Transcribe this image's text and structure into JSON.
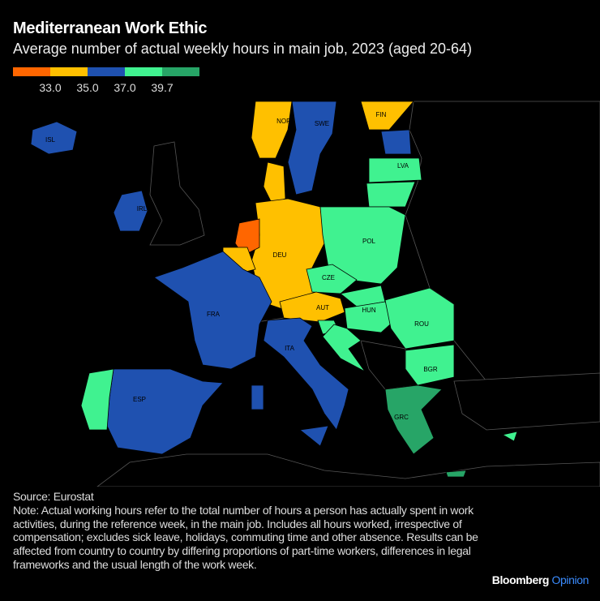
{
  "title": "Mediterranean Work Ethic",
  "subtitle": "Average number of actual weekly hours in main job, 2023 (aged 20-64)",
  "legend": {
    "colors": [
      "#ff6600",
      "#ffc000",
      "#1f51b0",
      "#40f290",
      "#27a567"
    ],
    "breaks": [
      "33.0",
      "35.0",
      "37.0",
      "39.7"
    ]
  },
  "countries": [
    {
      "code": "NOR",
      "bin": 1
    },
    {
      "code": "SWE",
      "bin": 2
    },
    {
      "code": "FIN",
      "bin": 1
    },
    {
      "code": "ISL",
      "bin": 2
    },
    {
      "code": "IRL",
      "bin": 2
    },
    {
      "code": "EST",
      "bin": 2
    },
    {
      "code": "LVA",
      "bin": 3
    },
    {
      "code": "LTU",
      "bin": 3
    },
    {
      "code": "DNK",
      "bin": 1
    },
    {
      "code": "DEU",
      "bin": 1
    },
    {
      "code": "NLD",
      "bin": 0
    },
    {
      "code": "BEL",
      "bin": 1
    },
    {
      "code": "POL",
      "bin": 3
    },
    {
      "code": "CZE",
      "bin": 3
    },
    {
      "code": "SVK",
      "bin": 3
    },
    {
      "code": "AUT",
      "bin": 1
    },
    {
      "code": "HUN",
      "bin": 3
    },
    {
      "code": "ROU",
      "bin": 3
    },
    {
      "code": "BGR",
      "bin": 3
    },
    {
      "code": "GRC",
      "bin": 4
    },
    {
      "code": "SVN",
      "bin": 3
    },
    {
      "code": "HRV",
      "bin": 3
    },
    {
      "code": "FRA",
      "bin": 2
    },
    {
      "code": "ESP",
      "bin": 2
    },
    {
      "code": "PRT",
      "bin": 3
    },
    {
      "code": "ITA",
      "bin": 2
    },
    {
      "code": "CYP",
      "bin": 3
    }
  ],
  "labels": [
    "NOR",
    "SWE",
    "FIN",
    "ISL",
    "IRL",
    "LVA",
    "POL",
    "DEU",
    "CZE",
    "AUT",
    "HUN",
    "ROU",
    "FRA",
    "ITA",
    "ESP",
    "BGR",
    "GRC"
  ],
  "source": "Source: Eurostat",
  "note": "Note: Actual working hours refer to the total number of hours a person has actually spent in work activities, during the reference week, in the main job. Includes all hours worked, irrespective of compensation; excludes sick leave, holidays, commuting time and other absence. Results can be affected from country to country by differing proportions of part-time workers, differences in legal frameworks and the usual length of the work week.",
  "brand": {
    "name": "Bloomberg",
    "section": "Opinion"
  }
}
